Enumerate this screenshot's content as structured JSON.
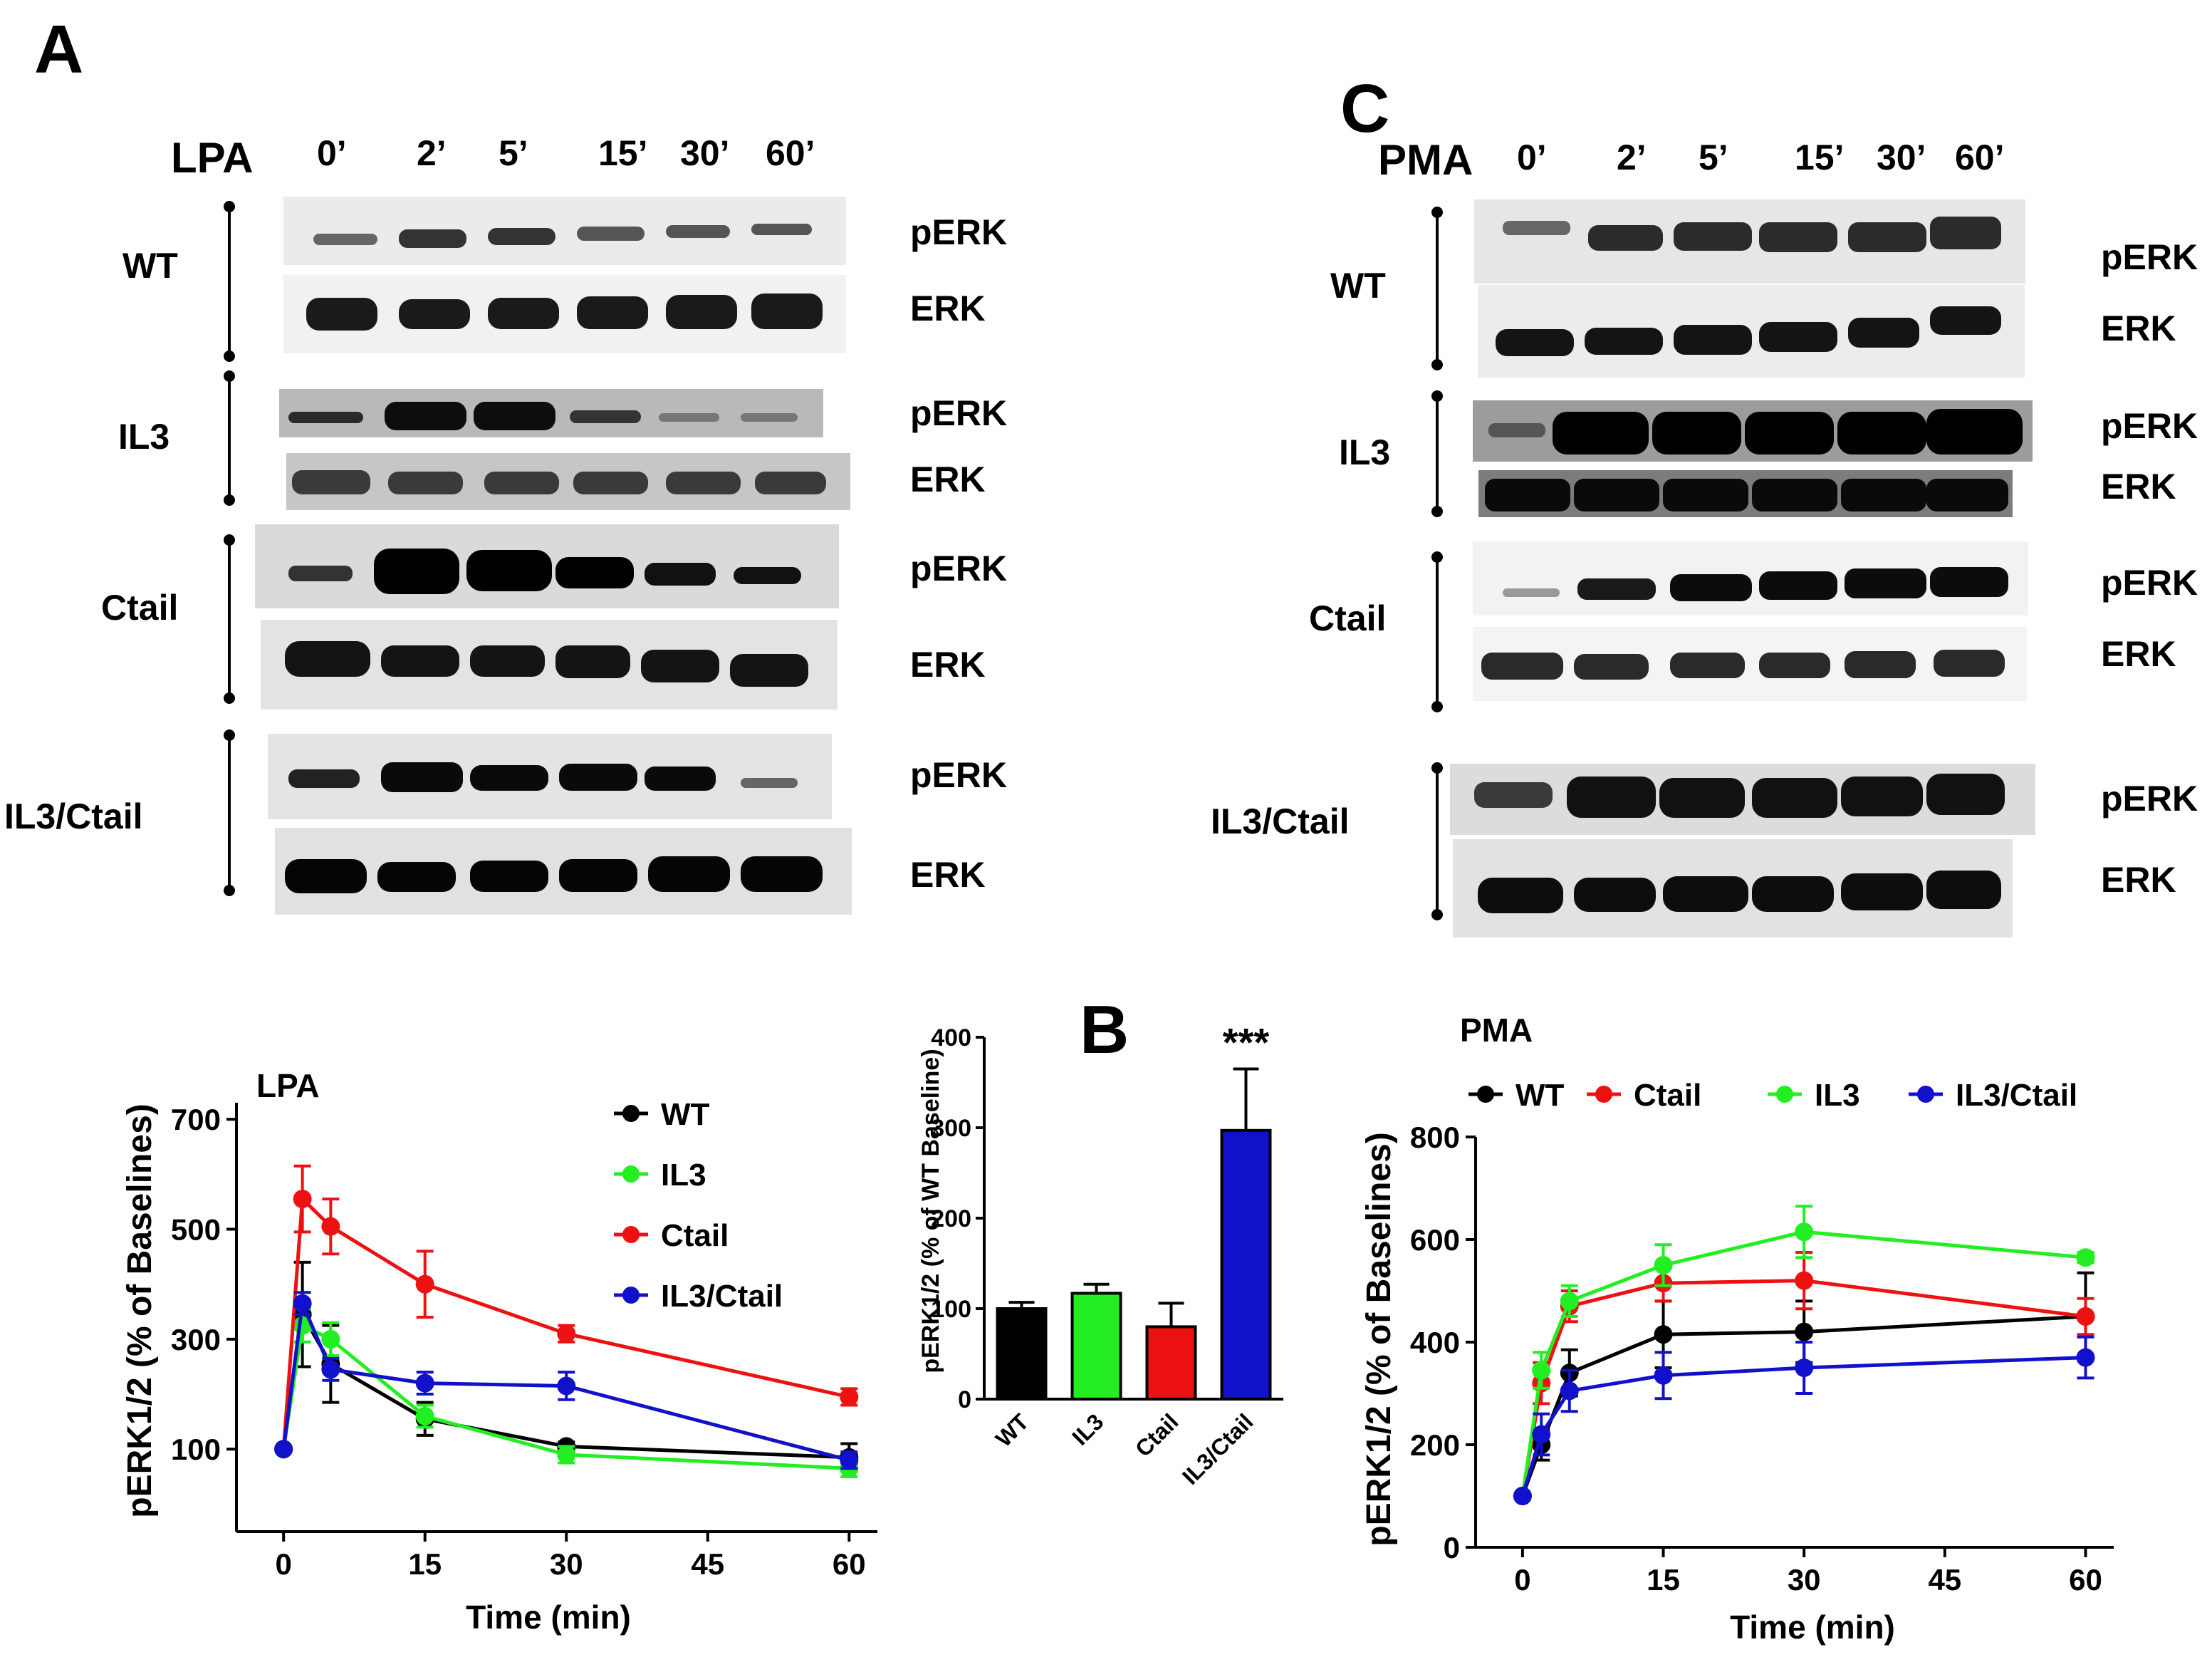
{
  "panels": {
    "a": "A",
    "b": "B",
    "c": "C"
  },
  "blotA": {
    "treatment": "LPA",
    "times": [
      "0’",
      "2’",
      "5’",
      "15’",
      "30’",
      "60’"
    ],
    "groups": [
      "WT",
      "IL3",
      "Ctail",
      "IL3/Ctail"
    ],
    "bands": {
      "pERK": "pERK",
      "ERK": "ERK"
    }
  },
  "blotC": {
    "treatment": "PMA",
    "times": [
      "0’",
      "2’",
      "5’",
      "15’",
      "30’",
      "60’"
    ],
    "groups": [
      "WT",
      "IL3",
      "Ctail",
      "IL3/Ctail"
    ],
    "bands": {
      "pERK": "pERK",
      "ERK": "ERK"
    }
  },
  "colors": {
    "WT": "#000000",
    "IL3": "#22ee22",
    "Ctail": "#ee1111",
    "IL3/Ctail": "#1111cc"
  },
  "chart_data": [
    {
      "id": "lpa",
      "type": "line",
      "title": "LPA",
      "xlabel": "Time (min)",
      "ylabel": "pERK1/2 (% of Baselines)",
      "xlim": [
        -5,
        63
      ],
      "ylim": [
        -50,
        730
      ],
      "xticks": [
        0,
        15,
        30,
        45,
        60
      ],
      "yticks": [
        100,
        300,
        500,
        700
      ],
      "legend": "top-right",
      "x": [
        0,
        2,
        5,
        15,
        30,
        60
      ],
      "series": [
        {
          "name": "WT",
          "values": [
            100,
            345,
            255,
            155,
            105,
            85
          ],
          "errors": [
            0,
            95,
            70,
            30,
            8,
            25
          ]
        },
        {
          "name": "IL3",
          "values": [
            100,
            325,
            300,
            160,
            90,
            65
          ],
          "errors": [
            0,
            30,
            30,
            20,
            15,
            15
          ]
        },
        {
          "name": "Ctail",
          "values": [
            100,
            555,
            505,
            400,
            310,
            195
          ],
          "errors": [
            0,
            60,
            50,
            60,
            15,
            15
          ]
        },
        {
          "name": "IL3/Ctail",
          "values": [
            100,
            365,
            245,
            220,
            215,
            80
          ],
          "errors": [
            0,
            20,
            20,
            20,
            25,
            15
          ]
        }
      ]
    },
    {
      "id": "bar",
      "type": "bar",
      "ylabel": "pERK1/2 (% of WT Baseline)",
      "ylim": [
        0,
        400
      ],
      "yticks": [
        0,
        100,
        200,
        300,
        400
      ],
      "categories": [
        "WT",
        "IL3",
        "Ctail",
        "IL3/Ctail"
      ],
      "values": [
        100,
        117,
        80,
        297
      ],
      "errors": [
        7,
        10,
        26,
        68
      ],
      "annotations": [
        {
          "category": "IL3/Ctail",
          "text": "***"
        }
      ]
    },
    {
      "id": "pma",
      "type": "line",
      "title": "PMA",
      "xlabel": "Time (min)",
      "ylabel": "pERK1/2  (% of Baselines)",
      "xlim": [
        -5,
        63
      ],
      "ylim": [
        0,
        800
      ],
      "xticks": [
        0,
        15,
        30,
        45,
        60
      ],
      "yticks": [
        0,
        200,
        400,
        600,
        800
      ],
      "legend": "top",
      "x": [
        0,
        2,
        5,
        15,
        30,
        60
      ],
      "series": [
        {
          "name": "WT",
          "values": [
            100,
            200,
            340,
            415,
            420,
            450
          ],
          "errors": [
            0,
            30,
            45,
            65,
            60,
            85
          ]
        },
        {
          "name": "Ctail",
          "values": [
            100,
            320,
            470,
            515,
            520,
            450
          ],
          "errors": [
            0,
            40,
            30,
            35,
            55,
            35
          ]
        },
        {
          "name": "IL3",
          "values": [
            100,
            345,
            480,
            550,
            615,
            565
          ],
          "errors": [
            0,
            35,
            30,
            40,
            50,
            10
          ]
        },
        {
          "name": "IL3/Ctail",
          "values": [
            100,
            220,
            305,
            335,
            350,
            370
          ],
          "errors": [
            0,
            40,
            40,
            45,
            50,
            40
          ]
        }
      ]
    }
  ]
}
